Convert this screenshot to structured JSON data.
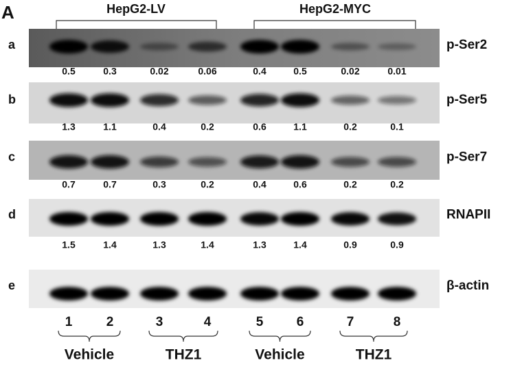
{
  "panel": "A",
  "groups": [
    "HepG2-LV",
    "HepG2-MYC"
  ],
  "rows": [
    {
      "letter": "a",
      "protein": "p-Ser2",
      "quant": [
        "0.5",
        "0.3",
        "0.02",
        "0.06",
        "0.4",
        "0.5",
        "0.02",
        "0.01"
      ]
    },
    {
      "letter": "b",
      "protein": "p-Ser5",
      "quant": [
        "1.3",
        "1.1",
        "0.4",
        "0.2",
        "0.6",
        "1.1",
        "0.2",
        "0.1"
      ]
    },
    {
      "letter": "c",
      "protein": "p-Ser7",
      "quant": [
        "0.7",
        "0.7",
        "0.3",
        "0.2",
        "0.4",
        "0.6",
        "0.2",
        "0.2"
      ]
    },
    {
      "letter": "d",
      "protein": "RNAPII",
      "quant": [
        "1.5",
        "1.4",
        "1.3",
        "1.4",
        "1.3",
        "1.4",
        "0.9",
        "0.9"
      ]
    },
    {
      "letter": "e",
      "protein": "β-actin"
    }
  ],
  "lanes": [
    "1",
    "2",
    "3",
    "4",
    "5",
    "6",
    "7",
    "8"
  ],
  "treatments": [
    "Vehicle",
    "THZ1",
    "Vehicle",
    "THZ1"
  ]
}
